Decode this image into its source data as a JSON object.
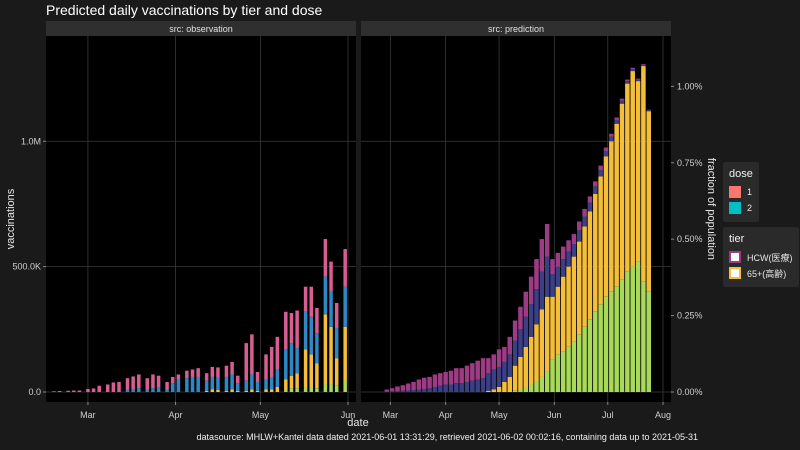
{
  "title": "Predicted daily vaccinations by tier and dose",
  "caption": "datasource: MHLW+Kantei data dated 2021-06-01 13:31:29, retrieved 2021-06-02 00:02:16, containing data up to 2021-05-31",
  "colors": {
    "bg": "#1a1a1a",
    "panel": "#000000",
    "strip": "#2f2f2f",
    "grid": "#3a3a3a",
    "hcw_dose1": "#d75d92",
    "hcw_dose2": "#2f88c6",
    "elderly_dose1": "#f4be3a",
    "elderly_dose2": "#a8d95a",
    "pred_hcw_dose1": "#9c3c84",
    "pred_hcw_dose2": "#3a3f86",
    "legend_dose1": "#f8766d",
    "legend_dose2": "#00bfc4"
  },
  "legend": {
    "dose_title": "dose",
    "dose_items": [
      "1",
      "2"
    ],
    "tier_title": "tier",
    "tier_items": [
      "HCW(医療)",
      "65+(高齢)"
    ]
  },
  "chart_data": [
    {
      "type": "bar",
      "panel": "src: observation",
      "xlabel": "date",
      "ylabel": "vaccinations",
      "ylim": [
        0,
        1380000
      ],
      "yticks": [
        0,
        500000,
        1000000
      ],
      "ytick_labels": [
        "0.0",
        "500.0K",
        "1.0M"
      ],
      "x_range": [
        "2021-02-17",
        "2021-06-01"
      ],
      "xticks": [
        "2021-03-01",
        "2021-04-01",
        "2021-05-01",
        "2021-06-01"
      ],
      "xtick_labels": [
        "Mar",
        "Apr",
        "May",
        "Jun"
      ],
      "series_names": [
        "HCW dose 1",
        "HCW dose 2",
        "65+ dose 1",
        "65+ dose 2"
      ],
      "bars": [
        {
          "date": "2021-02-17",
          "values": [
            3000,
            0,
            0,
            0
          ]
        },
        {
          "date": "2021-02-19",
          "values": [
            4000,
            0,
            0,
            0
          ]
        },
        {
          "date": "2021-02-22",
          "values": [
            5000,
            0,
            0,
            0
          ]
        },
        {
          "date": "2021-02-24",
          "values": [
            6000,
            0,
            0,
            0
          ]
        },
        {
          "date": "2021-02-26",
          "values": [
            6000,
            0,
            0,
            0
          ]
        },
        {
          "date": "2021-03-01",
          "values": [
            12000,
            0,
            0,
            0
          ]
        },
        {
          "date": "2021-03-03",
          "values": [
            14000,
            0,
            0,
            0
          ]
        },
        {
          "date": "2021-03-05",
          "values": [
            25000,
            0,
            0,
            0
          ]
        },
        {
          "date": "2021-03-08",
          "values": [
            30000,
            0,
            0,
            0
          ]
        },
        {
          "date": "2021-03-10",
          "values": [
            38000,
            0,
            0,
            0
          ]
        },
        {
          "date": "2021-03-12",
          "values": [
            40000,
            0,
            0,
            0
          ]
        },
        {
          "date": "2021-03-15",
          "values": [
            45000,
            10000,
            0,
            0
          ]
        },
        {
          "date": "2021-03-17",
          "values": [
            50000,
            12000,
            0,
            0
          ]
        },
        {
          "date": "2021-03-19",
          "values": [
            55000,
            15000,
            0,
            0
          ]
        },
        {
          "date": "2021-03-22",
          "values": [
            45000,
            10000,
            0,
            0
          ]
        },
        {
          "date": "2021-03-24",
          "values": [
            55000,
            15000,
            0,
            0
          ]
        },
        {
          "date": "2021-03-26",
          "values": [
            45000,
            20000,
            0,
            0
          ]
        },
        {
          "date": "2021-03-29",
          "values": [
            30000,
            10000,
            0,
            0
          ]
        },
        {
          "date": "2021-03-31",
          "values": [
            25000,
            35000,
            0,
            0
          ]
        },
        {
          "date": "2021-04-02",
          "values": [
            20000,
            50000,
            0,
            0
          ]
        },
        {
          "date": "2021-04-05",
          "values": [
            30000,
            55000,
            0,
            0
          ]
        },
        {
          "date": "2021-04-07",
          "values": [
            30000,
            60000,
            0,
            0
          ]
        },
        {
          "date": "2021-04-09",
          "values": [
            35000,
            60000,
            0,
            0
          ]
        },
        {
          "date": "2021-04-12",
          "values": [
            30000,
            40000,
            5000,
            0
          ]
        },
        {
          "date": "2021-04-14",
          "values": [
            40000,
            50000,
            10000,
            0
          ]
        },
        {
          "date": "2021-04-16",
          "values": [
            40000,
            50000,
            8000,
            0
          ]
        },
        {
          "date": "2021-04-19",
          "values": [
            45000,
            55000,
            5000,
            0
          ]
        },
        {
          "date": "2021-04-21",
          "values": [
            50000,
            60000,
            10000,
            0
          ]
        },
        {
          "date": "2021-04-23",
          "values": [
            30000,
            30000,
            5000,
            0
          ]
        },
        {
          "date": "2021-04-26",
          "values": [
            150000,
            40000,
            5000,
            0
          ]
        },
        {
          "date": "2021-04-28",
          "values": [
            160000,
            60000,
            10000,
            0
          ]
        },
        {
          "date": "2021-04-30",
          "values": [
            40000,
            35000,
            5000,
            0
          ]
        },
        {
          "date": "2021-05-03",
          "values": [
            100000,
            40000,
            10000,
            0
          ]
        },
        {
          "date": "2021-05-05",
          "values": [
            120000,
            50000,
            10000,
            0
          ]
        },
        {
          "date": "2021-05-07",
          "values": [
            130000,
            70000,
            20000,
            0
          ]
        },
        {
          "date": "2021-05-10",
          "values": [
            150000,
            120000,
            40000,
            10000
          ]
        },
        {
          "date": "2021-05-12",
          "values": [
            120000,
            130000,
            50000,
            15000
          ]
        },
        {
          "date": "2021-05-14",
          "values": [
            150000,
            100000,
            60000,
            15000
          ]
        },
        {
          "date": "2021-05-17",
          "values": [
            100000,
            150000,
            150000,
            20000
          ]
        },
        {
          "date": "2021-05-19",
          "values": [
            120000,
            150000,
            130000,
            20000
          ]
        },
        {
          "date": "2021-05-21",
          "values": [
            100000,
            120000,
            100000,
            15000
          ]
        },
        {
          "date": "2021-05-24",
          "values": [
            150000,
            150000,
            280000,
            30000
          ]
        },
        {
          "date": "2021-05-26",
          "values": [
            120000,
            140000,
            230000,
            30000
          ]
        },
        {
          "date": "2021-05-28",
          "values": [
            100000,
            120000,
            110000,
            25000
          ]
        },
        {
          "date": "2021-05-31",
          "values": [
            150000,
            160000,
            220000,
            40000
          ]
        }
      ]
    },
    {
      "type": "bar",
      "panel": "src: prediction",
      "xlabel": "date",
      "ylabel": "vaccinations",
      "y2label": "fraction of population",
      "ylim": [
        0,
        1380000
      ],
      "y2ticks": [
        0,
        0.0025,
        0.005,
        0.0075,
        0.01
      ],
      "y2tick_labels": [
        "0.00%",
        "0.25%",
        "0.50%",
        "0.75%",
        "1.00%"
      ],
      "x_range": [
        "2021-02-17",
        "2021-08-01"
      ],
      "xticks": [
        "2021-03-01",
        "2021-04-01",
        "2021-05-01",
        "2021-06-01",
        "2021-07-01",
        "2021-08-01"
      ],
      "xtick_labels": [
        "Mar",
        "Apr",
        "May",
        "Jun",
        "Jul",
        "Aug"
      ],
      "series_names": [
        "HCW dose 1",
        "HCW dose 2",
        "65+ dose 1",
        "65+ dose 2"
      ],
      "bars": [
        {
          "date": "2021-02-27",
          "values": [
            8000,
            2000,
            0,
            0
          ]
        },
        {
          "date": "2021-03-02",
          "values": [
            12000,
            3000,
            0,
            0
          ]
        },
        {
          "date": "2021-03-05",
          "values": [
            18000,
            4000,
            0,
            0
          ]
        },
        {
          "date": "2021-03-08",
          "values": [
            22000,
            5000,
            0,
            0
          ]
        },
        {
          "date": "2021-03-11",
          "values": [
            28000,
            6000,
            0,
            0
          ]
        },
        {
          "date": "2021-03-14",
          "values": [
            32000,
            8000,
            0,
            0
          ]
        },
        {
          "date": "2021-03-17",
          "values": [
            40000,
            10000,
            0,
            0
          ]
        },
        {
          "date": "2021-03-20",
          "values": [
            45000,
            12000,
            0,
            0
          ]
        },
        {
          "date": "2021-03-23",
          "values": [
            45000,
            15000,
            0,
            0
          ]
        },
        {
          "date": "2021-03-26",
          "values": [
            50000,
            20000,
            0,
            0
          ]
        },
        {
          "date": "2021-03-29",
          "values": [
            50000,
            25000,
            0,
            0
          ]
        },
        {
          "date": "2021-04-01",
          "values": [
            50000,
            30000,
            0,
            0
          ]
        },
        {
          "date": "2021-04-04",
          "values": [
            55000,
            30000,
            0,
            0
          ]
        },
        {
          "date": "2021-04-07",
          "values": [
            60000,
            35000,
            0,
            0
          ]
        },
        {
          "date": "2021-04-10",
          "values": [
            60000,
            35000,
            0,
            0
          ]
        },
        {
          "date": "2021-04-13",
          "values": [
            65000,
            40000,
            0,
            0
          ]
        },
        {
          "date": "2021-04-16",
          "values": [
            70000,
            45000,
            0,
            0
          ]
        },
        {
          "date": "2021-04-19",
          "values": [
            75000,
            50000,
            0,
            0
          ]
        },
        {
          "date": "2021-04-22",
          "values": [
            80000,
            55000,
            0,
            0
          ]
        },
        {
          "date": "2021-04-25",
          "values": [
            60000,
            70000,
            5000,
            0
          ]
        },
        {
          "date": "2021-04-28",
          "values": [
            60000,
            80000,
            10000,
            0
          ]
        },
        {
          "date": "2021-05-01",
          "values": [
            70000,
            80000,
            20000,
            0
          ]
        },
        {
          "date": "2021-05-04",
          "values": [
            60000,
            80000,
            40000,
            0
          ]
        },
        {
          "date": "2021-05-07",
          "values": [
            70000,
            90000,
            60000,
            0
          ]
        },
        {
          "date": "2021-05-10",
          "values": [
            80000,
            100000,
            100000,
            5000
          ]
        },
        {
          "date": "2021-05-13",
          "values": [
            90000,
            110000,
            130000,
            10000
          ]
        },
        {
          "date": "2021-05-16",
          "values": [
            100000,
            120000,
            160000,
            20000
          ]
        },
        {
          "date": "2021-05-19",
          "values": [
            110000,
            130000,
            190000,
            30000
          ]
        },
        {
          "date": "2021-05-22",
          "values": [
            120000,
            140000,
            230000,
            40000
          ]
        },
        {
          "date": "2021-05-25",
          "values": [
            130000,
            150000,
            270000,
            60000
          ]
        },
        {
          "date": "2021-05-28",
          "values": [
            130000,
            160000,
            300000,
            80000
          ]
        },
        {
          "date": "2021-05-31",
          "values": [
            60000,
            90000,
            250000,
            130000
          ]
        },
        {
          "date": "2021-06-03",
          "values": [
            55000,
            80000,
            270000,
            150000
          ]
        },
        {
          "date": "2021-06-06",
          "values": [
            50000,
            70000,
            300000,
            160000
          ]
        },
        {
          "date": "2021-06-09",
          "values": [
            45000,
            60000,
            320000,
            180000
          ]
        },
        {
          "date": "2021-06-12",
          "values": [
            40000,
            50000,
            340000,
            200000
          ]
        },
        {
          "date": "2021-06-15",
          "values": [
            35000,
            45000,
            370000,
            230000
          ]
        },
        {
          "date": "2021-06-18",
          "values": [
            30000,
            40000,
            400000,
            260000
          ]
        },
        {
          "date": "2021-06-21",
          "values": [
            25000,
            35000,
            430000,
            290000
          ]
        },
        {
          "date": "2021-06-24",
          "values": [
            20000,
            30000,
            470000,
            320000
          ]
        },
        {
          "date": "2021-06-27",
          "values": [
            18000,
            25000,
            510000,
            350000
          ]
        },
        {
          "date": "2021-06-30",
          "values": [
            15000,
            20000,
            560000,
            380000
          ]
        },
        {
          "date": "2021-07-03",
          "values": [
            12000,
            18000,
            600000,
            400000
          ]
        },
        {
          "date": "2021-07-06",
          "values": [
            10000,
            15000,
            650000,
            420000
          ]
        },
        {
          "date": "2021-07-09",
          "values": [
            8000,
            12000,
            700000,
            450000
          ]
        },
        {
          "date": "2021-07-12",
          "values": [
            6000,
            10000,
            750000,
            480000
          ]
        },
        {
          "date": "2021-07-15",
          "values": [
            5000,
            8000,
            780000,
            500000
          ]
        },
        {
          "date": "2021-07-18",
          "values": [
            4000,
            6000,
            720000,
            520000
          ]
        },
        {
          "date": "2021-07-21",
          "values": [
            3000,
            5000,
            860000,
            440000
          ]
        },
        {
          "date": "2021-07-24",
          "values": [
            2000,
            4000,
            720000,
            400000
          ]
        }
      ]
    }
  ]
}
